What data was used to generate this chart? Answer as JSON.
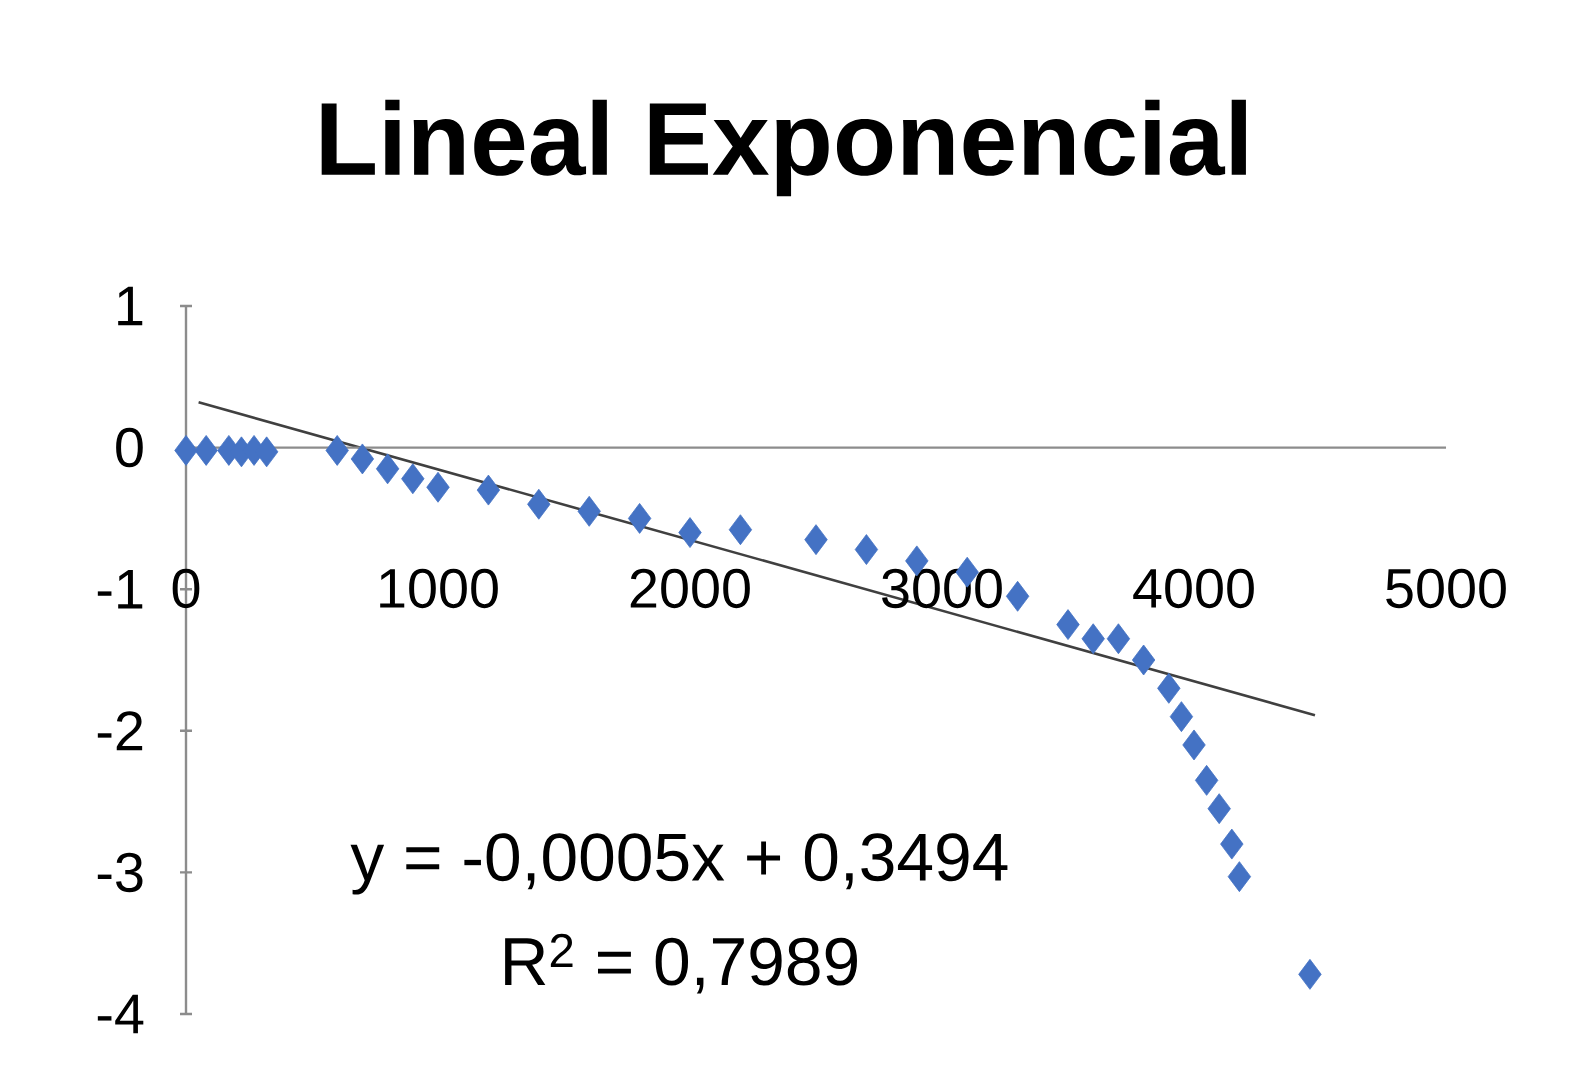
{
  "chart_data": {
    "type": "scatter",
    "title": "Lineal Exponencial",
    "annotations": [
      "y = -0,0005x + 0,3494",
      "R$^{2}$ = 0,7989"
    ],
    "xlim": [
      0,
      5000
    ],
    "ylim": [
      -4,
      1
    ],
    "xticks": [
      0,
      1000,
      2000,
      3000,
      4000,
      5000
    ],
    "yticks": [
      -4,
      -3,
      -2,
      -1,
      0,
      1
    ],
    "grid": false,
    "series": [
      {
        "color": "#4472c4",
        "marker": "diamond",
        "x": [
          0,
          80,
          170,
          220,
          270,
          320,
          600,
          700,
          800,
          900,
          1000,
          1200,
          1400,
          1600,
          1800,
          2000,
          2200,
          2500,
          2700,
          2900,
          3100,
          3300,
          3500,
          3600,
          3700,
          3800,
          3900,
          3950,
          4000,
          4050,
          4100,
          4150,
          4180,
          4460
        ],
        "values": [
          -0.02,
          -0.02,
          -0.02,
          -0.03,
          -0.02,
          -0.03,
          -0.02,
          -0.08,
          -0.15,
          -0.22,
          -0.28,
          -0.3,
          -0.4,
          -0.45,
          -0.5,
          -0.6,
          -0.58,
          -0.65,
          -0.72,
          -0.8,
          -0.88,
          -1.05,
          -1.25,
          -1.35,
          -1.35,
          -1.5,
          -1.7,
          -1.9,
          -2.1,
          -2.35,
          -2.55,
          -2.8,
          -3.03,
          -3.72
        ]
      },
      {
        "type": "line",
        "marker": "none",
        "color": "#404040",
        "x": [
          50,
          4480
        ],
        "values": [
          0.32,
          -1.89
        ]
      }
    ]
  }
}
